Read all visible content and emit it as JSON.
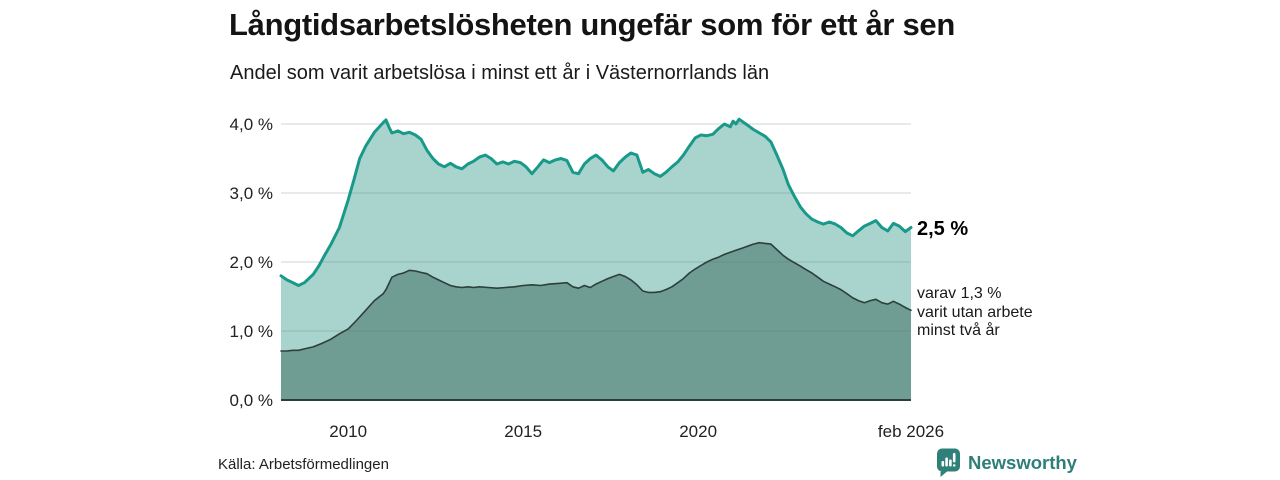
{
  "chart_data": {
    "type": "area",
    "title": "Långtidsarbetslösheten ungefär som för ett år sen",
    "subtitle": "Andel som varit arbetslösa i minst ett år i Västernorrlands län",
    "unit": "%",
    "grid": true,
    "legend_position": "none",
    "ylim": [
      0,
      4
    ],
    "x_domain": [
      2008.08,
      2026.083
    ],
    "yticks": [
      {
        "v": 0,
        "label": "0,0 %"
      },
      {
        "v": 1,
        "label": "1,0 %"
      },
      {
        "v": 2,
        "label": "2,0 %"
      },
      {
        "v": 3,
        "label": "3,0 %"
      },
      {
        "v": 4,
        "label": "4,0 %"
      }
    ],
    "xticks": [
      {
        "t": 2010,
        "label": "2010"
      },
      {
        "t": 2015,
        "label": "2015"
      },
      {
        "t": 2020,
        "label": "2020"
      },
      {
        "t": 2026.083,
        "label": "feb 2026"
      }
    ],
    "series": [
      {
        "name": "Andel arbetslösa minst ett år",
        "line_color": "#18998a",
        "fill_color": "#a9d4cd",
        "line_width": 3,
        "end_label": "2,5 %",
        "end_value": 2.5,
        "points": [
          [
            2008.08,
            1.8
          ],
          [
            2008.25,
            1.74
          ],
          [
            2008.42,
            1.7
          ],
          [
            2008.58,
            1.66
          ],
          [
            2008.75,
            1.7
          ],
          [
            2009.0,
            1.82
          ],
          [
            2009.17,
            1.95
          ],
          [
            2009.33,
            2.1
          ],
          [
            2009.5,
            2.25
          ],
          [
            2009.75,
            2.5
          ],
          [
            2010.0,
            2.9
          ],
          [
            2010.17,
            3.2
          ],
          [
            2010.33,
            3.5
          ],
          [
            2010.5,
            3.68
          ],
          [
            2010.75,
            3.88
          ],
          [
            2011.0,
            4.02
          ],
          [
            2011.08,
            4.06
          ],
          [
            2011.17,
            3.95
          ],
          [
            2011.25,
            3.87
          ],
          [
            2011.42,
            3.9
          ],
          [
            2011.58,
            3.86
          ],
          [
            2011.75,
            3.88
          ],
          [
            2011.92,
            3.84
          ],
          [
            2012.08,
            3.78
          ],
          [
            2012.25,
            3.62
          ],
          [
            2012.42,
            3.5
          ],
          [
            2012.58,
            3.42
          ],
          [
            2012.75,
            3.38
          ],
          [
            2012.92,
            3.43
          ],
          [
            2013.08,
            3.38
          ],
          [
            2013.25,
            3.35
          ],
          [
            2013.42,
            3.42
          ],
          [
            2013.58,
            3.46
          ],
          [
            2013.75,
            3.52
          ],
          [
            2013.92,
            3.55
          ],
          [
            2014.08,
            3.5
          ],
          [
            2014.25,
            3.42
          ],
          [
            2014.42,
            3.45
          ],
          [
            2014.58,
            3.42
          ],
          [
            2014.75,
            3.46
          ],
          [
            2014.92,
            3.44
          ],
          [
            2015.08,
            3.38
          ],
          [
            2015.25,
            3.28
          ],
          [
            2015.42,
            3.38
          ],
          [
            2015.58,
            3.48
          ],
          [
            2015.75,
            3.44
          ],
          [
            2015.92,
            3.48
          ],
          [
            2016.08,
            3.5
          ],
          [
            2016.25,
            3.47
          ],
          [
            2016.42,
            3.3
          ],
          [
            2016.58,
            3.28
          ],
          [
            2016.75,
            3.42
          ],
          [
            2016.92,
            3.5
          ],
          [
            2017.08,
            3.55
          ],
          [
            2017.25,
            3.48
          ],
          [
            2017.42,
            3.38
          ],
          [
            2017.58,
            3.32
          ],
          [
            2017.75,
            3.44
          ],
          [
            2017.92,
            3.52
          ],
          [
            2018.08,
            3.58
          ],
          [
            2018.25,
            3.55
          ],
          [
            2018.42,
            3.3
          ],
          [
            2018.58,
            3.34
          ],
          [
            2018.75,
            3.28
          ],
          [
            2018.92,
            3.24
          ],
          [
            2019.08,
            3.3
          ],
          [
            2019.25,
            3.38
          ],
          [
            2019.42,
            3.45
          ],
          [
            2019.58,
            3.55
          ],
          [
            2019.75,
            3.68
          ],
          [
            2019.92,
            3.8
          ],
          [
            2020.08,
            3.84
          ],
          [
            2020.25,
            3.83
          ],
          [
            2020.42,
            3.85
          ],
          [
            2020.58,
            3.93
          ],
          [
            2020.75,
            4.0
          ],
          [
            2020.92,
            3.96
          ],
          [
            2021.0,
            4.04
          ],
          [
            2021.08,
            4.0
          ],
          [
            2021.17,
            4.07
          ],
          [
            2021.25,
            4.04
          ],
          [
            2021.42,
            3.98
          ],
          [
            2021.58,
            3.92
          ],
          [
            2021.75,
            3.87
          ],
          [
            2021.92,
            3.82
          ],
          [
            2022.08,
            3.74
          ],
          [
            2022.25,
            3.55
          ],
          [
            2022.42,
            3.35
          ],
          [
            2022.58,
            3.12
          ],
          [
            2022.75,
            2.95
          ],
          [
            2022.92,
            2.8
          ],
          [
            2023.08,
            2.7
          ],
          [
            2023.25,
            2.62
          ],
          [
            2023.42,
            2.58
          ],
          [
            2023.58,
            2.55
          ],
          [
            2023.75,
            2.58
          ],
          [
            2023.92,
            2.55
          ],
          [
            2024.08,
            2.5
          ],
          [
            2024.25,
            2.42
          ],
          [
            2024.42,
            2.38
          ],
          [
            2024.58,
            2.45
          ],
          [
            2024.75,
            2.52
          ],
          [
            2024.92,
            2.56
          ],
          [
            2025.08,
            2.6
          ],
          [
            2025.25,
            2.5
          ],
          [
            2025.42,
            2.45
          ],
          [
            2025.58,
            2.56
          ],
          [
            2025.75,
            2.52
          ],
          [
            2025.92,
            2.44
          ],
          [
            2026.083,
            2.5
          ]
        ]
      },
      {
        "name": "varav utan arbete minst två år",
        "line_color": "#2e3f3a",
        "fill_color": "#6f9c93",
        "line_width": 1.6,
        "end_label": "varav 1,3 %\nvarit utan arbete\nminst två år",
        "end_value": 1.3,
        "points": [
          [
            2008.08,
            0.71
          ],
          [
            2008.25,
            0.71
          ],
          [
            2008.42,
            0.72
          ],
          [
            2008.58,
            0.72
          ],
          [
            2008.75,
            0.74
          ],
          [
            2009.0,
            0.77
          ],
          [
            2009.25,
            0.82
          ],
          [
            2009.5,
            0.88
          ],
          [
            2009.75,
            0.96
          ],
          [
            2010.0,
            1.03
          ],
          [
            2010.25,
            1.16
          ],
          [
            2010.5,
            1.3
          ],
          [
            2010.75,
            1.44
          ],
          [
            2011.0,
            1.54
          ],
          [
            2011.08,
            1.6
          ],
          [
            2011.25,
            1.78
          ],
          [
            2011.42,
            1.82
          ],
          [
            2011.58,
            1.84
          ],
          [
            2011.75,
            1.88
          ],
          [
            2011.92,
            1.87
          ],
          [
            2012.08,
            1.85
          ],
          [
            2012.25,
            1.83
          ],
          [
            2012.42,
            1.78
          ],
          [
            2012.58,
            1.74
          ],
          [
            2012.75,
            1.7
          ],
          [
            2012.92,
            1.66
          ],
          [
            2013.08,
            1.64
          ],
          [
            2013.25,
            1.63
          ],
          [
            2013.42,
            1.64
          ],
          [
            2013.58,
            1.63
          ],
          [
            2013.75,
            1.64
          ],
          [
            2014.0,
            1.63
          ],
          [
            2014.25,
            1.62
          ],
          [
            2014.5,
            1.63
          ],
          [
            2014.75,
            1.64
          ],
          [
            2015.0,
            1.66
          ],
          [
            2015.25,
            1.67
          ],
          [
            2015.5,
            1.66
          ],
          [
            2015.75,
            1.68
          ],
          [
            2016.0,
            1.69
          ],
          [
            2016.25,
            1.7
          ],
          [
            2016.42,
            1.64
          ],
          [
            2016.58,
            1.62
          ],
          [
            2016.75,
            1.66
          ],
          [
            2016.92,
            1.63
          ],
          [
            2017.08,
            1.68
          ],
          [
            2017.25,
            1.72
          ],
          [
            2017.42,
            1.76
          ],
          [
            2017.58,
            1.79
          ],
          [
            2017.75,
            1.82
          ],
          [
            2017.92,
            1.79
          ],
          [
            2018.08,
            1.74
          ],
          [
            2018.25,
            1.67
          ],
          [
            2018.42,
            1.58
          ],
          [
            2018.58,
            1.56
          ],
          [
            2018.75,
            1.56
          ],
          [
            2018.92,
            1.57
          ],
          [
            2019.08,
            1.6
          ],
          [
            2019.25,
            1.64
          ],
          [
            2019.42,
            1.7
          ],
          [
            2019.58,
            1.76
          ],
          [
            2019.75,
            1.84
          ],
          [
            2019.92,
            1.9
          ],
          [
            2020.08,
            1.95
          ],
          [
            2020.25,
            2.0
          ],
          [
            2020.42,
            2.04
          ],
          [
            2020.58,
            2.07
          ],
          [
            2020.75,
            2.11
          ],
          [
            2020.92,
            2.14
          ],
          [
            2021.08,
            2.17
          ],
          [
            2021.25,
            2.2
          ],
          [
            2021.42,
            2.23
          ],
          [
            2021.58,
            2.26
          ],
          [
            2021.75,
            2.28
          ],
          [
            2021.92,
            2.27
          ],
          [
            2022.08,
            2.26
          ],
          [
            2022.25,
            2.18
          ],
          [
            2022.42,
            2.1
          ],
          [
            2022.58,
            2.04
          ],
          [
            2022.75,
            1.99
          ],
          [
            2022.92,
            1.94
          ],
          [
            2023.08,
            1.89
          ],
          [
            2023.25,
            1.84
          ],
          [
            2023.42,
            1.78
          ],
          [
            2023.58,
            1.72
          ],
          [
            2023.75,
            1.68
          ],
          [
            2023.92,
            1.64
          ],
          [
            2024.08,
            1.6
          ],
          [
            2024.25,
            1.54
          ],
          [
            2024.42,
            1.48
          ],
          [
            2024.58,
            1.44
          ],
          [
            2024.75,
            1.41
          ],
          [
            2024.92,
            1.44
          ],
          [
            2025.08,
            1.46
          ],
          [
            2025.25,
            1.41
          ],
          [
            2025.42,
            1.39
          ],
          [
            2025.58,
            1.43
          ],
          [
            2025.75,
            1.39
          ],
          [
            2025.92,
            1.34
          ],
          [
            2026.083,
            1.3
          ]
        ]
      }
    ]
  },
  "footer": {
    "source": "Källa: Arbetsförmedlingen",
    "brand": "Newsworthy"
  },
  "colors": {
    "grid": "rgba(100,112,118,0.30)",
    "axis": "#2e3f3a",
    "text": "#1a1a1a",
    "brand": "#2e7f78",
    "background": "#ffffff"
  }
}
